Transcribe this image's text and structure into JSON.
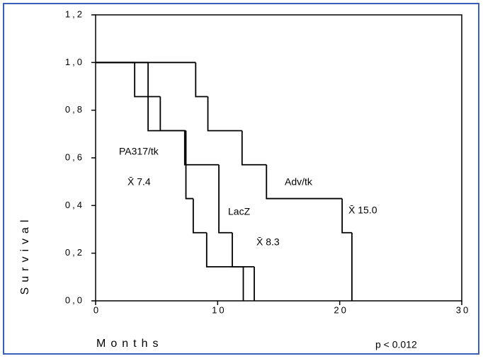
{
  "chart_data": {
    "type": "step",
    "ylabel": "Survival",
    "xlabel": "Months",
    "xlim": [
      0,
      30
    ],
    "xticks": [
      0,
      10,
      20,
      30
    ],
    "ylim": [
      0,
      1.2
    ],
    "yticks": [
      {
        "value": 0,
        "label": "0,0"
      },
      {
        "value": 0.2,
        "label": "0,2"
      },
      {
        "value": 0.4,
        "label": "0,4"
      },
      {
        "value": 0.6,
        "label": "0,6"
      },
      {
        "value": 0.8,
        "label": "0,8"
      },
      {
        "value": 1.0,
        "label": "1,0"
      },
      {
        "value": 1.2,
        "label": "1,2"
      }
    ],
    "color": "#000000",
    "series": [
      {
        "name": "PA317/tk",
        "x": [
          0,
          3.2,
          4.3,
          7.4,
          8.0,
          9.1,
          12.1
        ],
        "values": [
          1.0,
          0.857,
          0.714,
          0.429,
          0.286,
          0.143,
          0
        ]
      },
      {
        "name": "LacZ",
        "x": [
          0,
          4.3,
          5.3,
          7.3,
          10.1,
          11.2,
          13.0
        ],
        "values": [
          1.0,
          0.857,
          0.714,
          0.571,
          0.286,
          0.143,
          0
        ]
      },
      {
        "name": "Adv/tk",
        "x": [
          0,
          8.2,
          9.2,
          12.0,
          14.0,
          20.2,
          21.0
        ],
        "values": [
          1.0,
          0.857,
          0.714,
          0.571,
          0.429,
          0.286,
          0
        ]
      }
    ],
    "annotations": [
      "X̄ 7.4",
      "X̄ 8.3",
      "X̄ 15.0",
      "p < 0.012"
    ]
  }
}
